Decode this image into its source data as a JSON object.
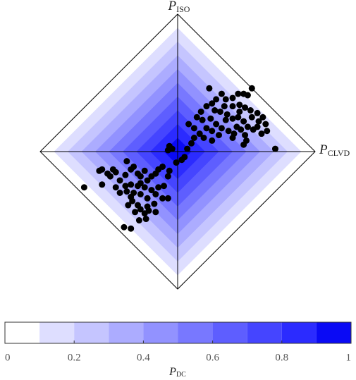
{
  "chart_data": {
    "type": "scatter",
    "x_label": {
      "symbol": "P",
      "subscript": "CLVD"
    },
    "y_label": {
      "symbol": "P",
      "subscript": "ISO"
    },
    "xlim": [
      -1,
      1
    ],
    "ylim": [
      -1,
      1
    ],
    "color": "#000000",
    "x": [
      0.54,
      0.48,
      0.51,
      0.44,
      0.4,
      0.23,
      0.32,
      0.35,
      0.28,
      0.25,
      0.34,
      0.4,
      0.45,
      0.49,
      0.53,
      0.58,
      0.62,
      0.59,
      0.64,
      0.65,
      0.61,
      0.55,
      0.51,
      0.48,
      0.44,
      0.4,
      0.36,
      0.31,
      0.27,
      0.21,
      0.17,
      0.14,
      0.18,
      0.24,
      0.28,
      0.32,
      0.35,
      0.37,
      0.41,
      0.46,
      0.49,
      0.5,
      0.48,
      0.4,
      0.3,
      0.25,
      0.21,
      0.16,
      0.12,
      0.08,
      0.12,
      0.19,
      0.25,
      0.71,
      0.1,
      0.07,
      0.45,
      0.43,
      0.54,
      0.58,
      -0.06,
      -0.04,
      -0.07,
      0.05,
      0.03,
      -0.01,
      -0.68,
      -0.57,
      -0.55,
      -0.51,
      -0.47,
      -0.45,
      -0.49,
      -0.55,
      -0.45,
      -0.42,
      -0.37,
      -0.34,
      -0.32,
      -0.29,
      -0.27,
      -0.24,
      -0.22,
      -0.19,
      -0.16,
      -0.14,
      -0.11,
      -0.06,
      -0.07,
      -0.1,
      -0.14,
      -0.19,
      -0.24,
      -0.29,
      -0.34,
      -0.38,
      -0.37,
      -0.32,
      -0.27,
      -0.22,
      -0.16,
      -0.11,
      -0.17,
      -0.22,
      -0.27,
      -0.29,
      -0.33,
      -0.36,
      -0.31,
      -0.24,
      -0.21,
      -0.16,
      -0.23,
      -0.28,
      -0.39,
      -0.34,
      -0.07,
      -0.34,
      -0.42,
      -0.38,
      -0.27
    ],
    "y": [
      0.46,
      0.42,
      0.41,
      0.42,
      0.39,
      0.46,
      0.42,
      0.38,
      0.38,
      0.35,
      0.33,
      0.33,
      0.34,
      0.32,
      0.3,
      0.28,
      0.25,
      0.22,
      0.2,
      0.15,
      0.13,
      0.16,
      0.18,
      0.22,
      0.25,
      0.24,
      0.27,
      0.29,
      0.3,
      0.33,
      0.29,
      0.25,
      0.23,
      0.24,
      0.2,
      0.17,
      0.23,
      0.15,
      0.13,
      0.16,
      0.12,
      0.08,
      0.05,
      0.1,
      0.12,
      0.15,
      0.17,
      0.13,
      0.17,
      0.2,
      0.1,
      0.1,
      0.08,
      0.02,
      0.06,
      0.02,
      0.29,
      0.18,
      0.25,
      0.18,
      0.04,
      0.02,
      0.01,
      -0.04,
      -0.06,
      -0.08,
      -0.26,
      -0.14,
      -0.13,
      -0.16,
      -0.13,
      -0.15,
      -0.18,
      -0.24,
      -0.26,
      -0.21,
      -0.07,
      -0.13,
      -0.11,
      -0.16,
      -0.18,
      -0.14,
      -0.21,
      -0.18,
      -0.16,
      -0.13,
      -0.11,
      -0.14,
      -0.18,
      -0.25,
      -0.26,
      -0.28,
      -0.26,
      -0.25,
      -0.24,
      -0.25,
      -0.29,
      -0.3,
      -0.31,
      -0.34,
      -0.31,
      -0.34,
      -0.38,
      -0.4,
      -0.42,
      -0.39,
      -0.36,
      -0.39,
      -0.44,
      -0.45,
      -0.43,
      -0.44,
      -0.49,
      -0.5,
      -0.55,
      -0.56,
      -0.34,
      -0.33,
      -0.3,
      -0.17,
      -0.23
    ],
    "colorbar": {
      "label": {
        "symbol": "P",
        "subscript": "DC"
      },
      "lim": [
        0,
        1
      ],
      "ticks": [
        0,
        0.2,
        0.4,
        0.6,
        0.8,
        1
      ],
      "levels": [
        0,
        0.1,
        0.2,
        0.3,
        0.4,
        0.5,
        0.6,
        0.7,
        0.8,
        0.9,
        1
      ],
      "colors": [
        "#ffffff",
        "#dedeff",
        "#c5c5ff",
        "#acacff",
        "#9292ff",
        "#7878ff",
        "#5e5eff",
        "#4545ff",
        "#2b2bff",
        "#0a0af5"
      ]
    }
  }
}
